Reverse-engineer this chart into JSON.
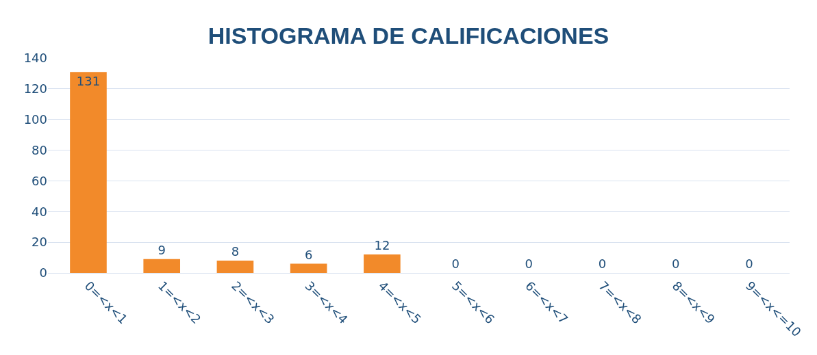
{
  "chart_data": {
    "type": "bar",
    "title": "HISTOGRAMA DE CALIFICACIONES",
    "categories": [
      "0=<x<1",
      "1=<x<2",
      "2=<x<3",
      "3=<x<4",
      "4=<x<5",
      "5=<x<6",
      "6=<x<7",
      "7=<x<8",
      "8=<x<9",
      "9=<x<=10"
    ],
    "values": [
      131,
      9,
      8,
      6,
      12,
      0,
      0,
      0,
      0,
      0
    ],
    "color": "#f28a2a",
    "ylim": [
      0,
      140
    ],
    "yticks": [
      0,
      20,
      40,
      60,
      80,
      100,
      120,
      140
    ],
    "grid": "y",
    "data_labels": true
  }
}
